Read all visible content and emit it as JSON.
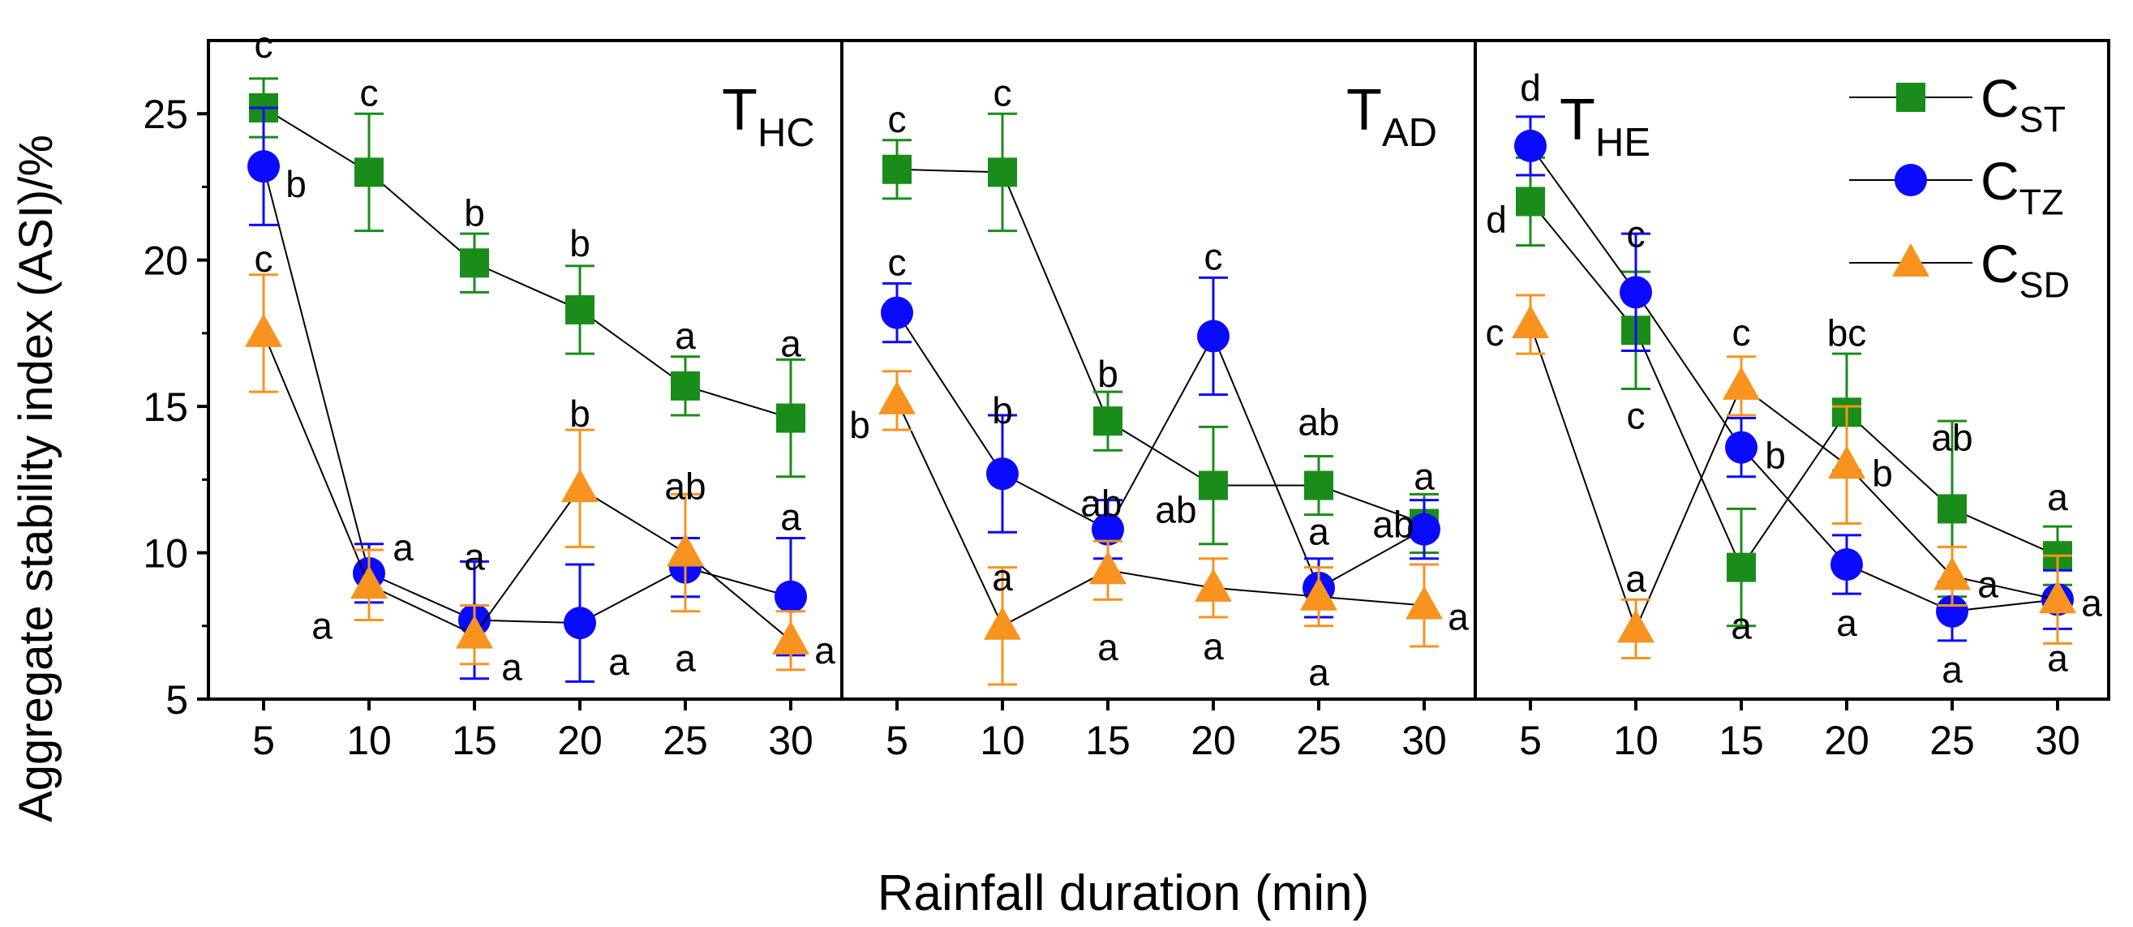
{
  "chart_data": {
    "type": "line",
    "ylabel": "Aggregate stability index (ASI)/%",
    "xlabel": "Rainfall duration (min)",
    "ylim": [
      5,
      27.5
    ],
    "yticks": [
      5,
      10,
      15,
      20,
      25
    ],
    "categories": [
      "5",
      "10",
      "15",
      "20",
      "25",
      "30"
    ],
    "series_meta": [
      {
        "key": "CST",
        "base": "C",
        "sub": "ST",
        "marker": "square",
        "color": "#1a8c1a"
      },
      {
        "key": "CTZ",
        "base": "C",
        "sub": "TZ",
        "marker": "circle",
        "color": "#0a0aff"
      },
      {
        "key": "CSD",
        "base": "C",
        "sub": "SD",
        "marker": "triangle",
        "color": "#f7931e"
      }
    ],
    "panels": [
      {
        "base": "T",
        "sub": "HC",
        "series": [
          {
            "key": "CST",
            "values": [
              25.2,
              23.0,
              19.9,
              18.3,
              15.7,
              14.6
            ],
            "errors": [
              1.0,
              2.0,
              1.0,
              1.5,
              1.0,
              2.0
            ],
            "letters": [
              "c",
              "c",
              "b",
              "b",
              "a",
              "a"
            ]
          },
          {
            "key": "CTZ",
            "values": [
              23.2,
              9.3,
              7.7,
              7.6,
              9.5,
              8.5
            ],
            "errors": [
              2.0,
              1.0,
              2.0,
              2.0,
              1.0,
              2.0
            ],
            "letters": [
              "b",
              "a",
              "a",
              "a",
              "a",
              "a"
            ]
          },
          {
            "key": "CSD",
            "values": [
              17.5,
              8.9,
              7.2,
              12.2,
              10.0,
              7.0
            ],
            "errors": [
              2.0,
              1.2,
              1.0,
              2.0,
              2.0,
              1.0
            ],
            "letters": [
              "c",
              "a",
              "a",
              "b",
              "ab",
              "a"
            ]
          }
        ]
      },
      {
        "base": "T",
        "sub": "AD",
        "series": [
          {
            "key": "CST",
            "values": [
              23.1,
              23.0,
              14.5,
              12.3,
              12.3,
              11.0
            ],
            "errors": [
              1.0,
              2.0,
              1.0,
              2.0,
              1.0,
              1.0
            ],
            "letters": [
              "c",
              "c",
              "b",
              "ab",
              "ab",
              "a"
            ]
          },
          {
            "key": "CTZ",
            "values": [
              18.2,
              12.7,
              10.8,
              17.4,
              8.8,
              10.8
            ],
            "errors": [
              1.0,
              2.0,
              1.0,
              2.0,
              1.0,
              1.0
            ],
            "letters": [
              "c",
              "b",
              "ab",
              "c",
              "a",
              "ab"
            ]
          },
          {
            "key": "CSD",
            "values": [
              15.2,
              7.5,
              9.4,
              8.8,
              8.5,
              8.2
            ],
            "errors": [
              1.0,
              2.0,
              1.0,
              1.0,
              1.0,
              1.4
            ],
            "letters": [
              "b",
              "a",
              "a",
              "a",
              "a",
              "a"
            ]
          }
        ]
      },
      {
        "base": "T",
        "sub": "HE",
        "series": [
          {
            "key": "CST",
            "values": [
              22.0,
              17.6,
              9.5,
              14.8,
              11.5,
              9.9
            ],
            "errors": [
              1.5,
              2.0,
              2.0,
              2.0,
              3.0,
              1.0
            ],
            "letters": [
              "d",
              "c",
              "a",
              "bc",
              "ab",
              "a"
            ]
          },
          {
            "key": "CTZ",
            "values": [
              23.9,
              18.9,
              13.6,
              9.6,
              8.0,
              8.4
            ],
            "errors": [
              1.0,
              2.0,
              1.0,
              1.0,
              1.0,
              1.0
            ],
            "letters": [
              "d",
              "c",
              "b",
              "a",
              "a",
              "a"
            ]
          },
          {
            "key": "CSD",
            "values": [
              17.8,
              7.4,
              15.7,
              13.0,
              9.2,
              8.4
            ],
            "errors": [
              1.0,
              1.0,
              1.0,
              2.0,
              1.0,
              1.5
            ],
            "letters": [
              "c",
              "a",
              "c",
              "b",
              "a",
              "a"
            ]
          }
        ]
      }
    ]
  }
}
